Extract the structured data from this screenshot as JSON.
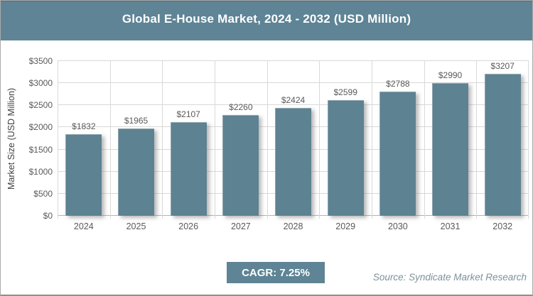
{
  "header": {
    "title": "Global E-House Market, 2024 - 2032 (USD Million)"
  },
  "chart_data": {
    "type": "bar",
    "title": "Global E-House Market, 2024 - 2032 (USD Million)",
    "categories": [
      "2024",
      "2025",
      "2026",
      "2027",
      "2028",
      "2029",
      "2030",
      "2031",
      "2032"
    ],
    "values": [
      1832,
      1965,
      2107,
      2260,
      2424,
      2599,
      2788,
      2990,
      3207
    ],
    "bar_labels": [
      "$1832",
      "$1965",
      "$2107",
      "$2260",
      "$2424",
      "$2599",
      "$2788",
      "$2990",
      "$3207"
    ],
    "xlabel": "",
    "ylabel": "Market Size (USD Million)",
    "ylim": [
      0,
      3500
    ],
    "ytick_step": 500,
    "ytick_labels": [
      "$0",
      "$500",
      "$1000",
      "$1500",
      "$2000",
      "$2500",
      "$3000",
      "$3500"
    ],
    "grid": true,
    "legend": "none",
    "bar_color": "#5d8292",
    "gridline_color": "#d9d9d9",
    "axis_line_color": "#b3b3b3",
    "label_color": "#595959"
  },
  "footer": {
    "cagr_label": "CAGR: 7.25%",
    "source": "Source: Syndicate Market Research"
  },
  "theme": {
    "accent": "#5e8495",
    "title_text": "#ffffff",
    "source_text": "#7e909b"
  }
}
